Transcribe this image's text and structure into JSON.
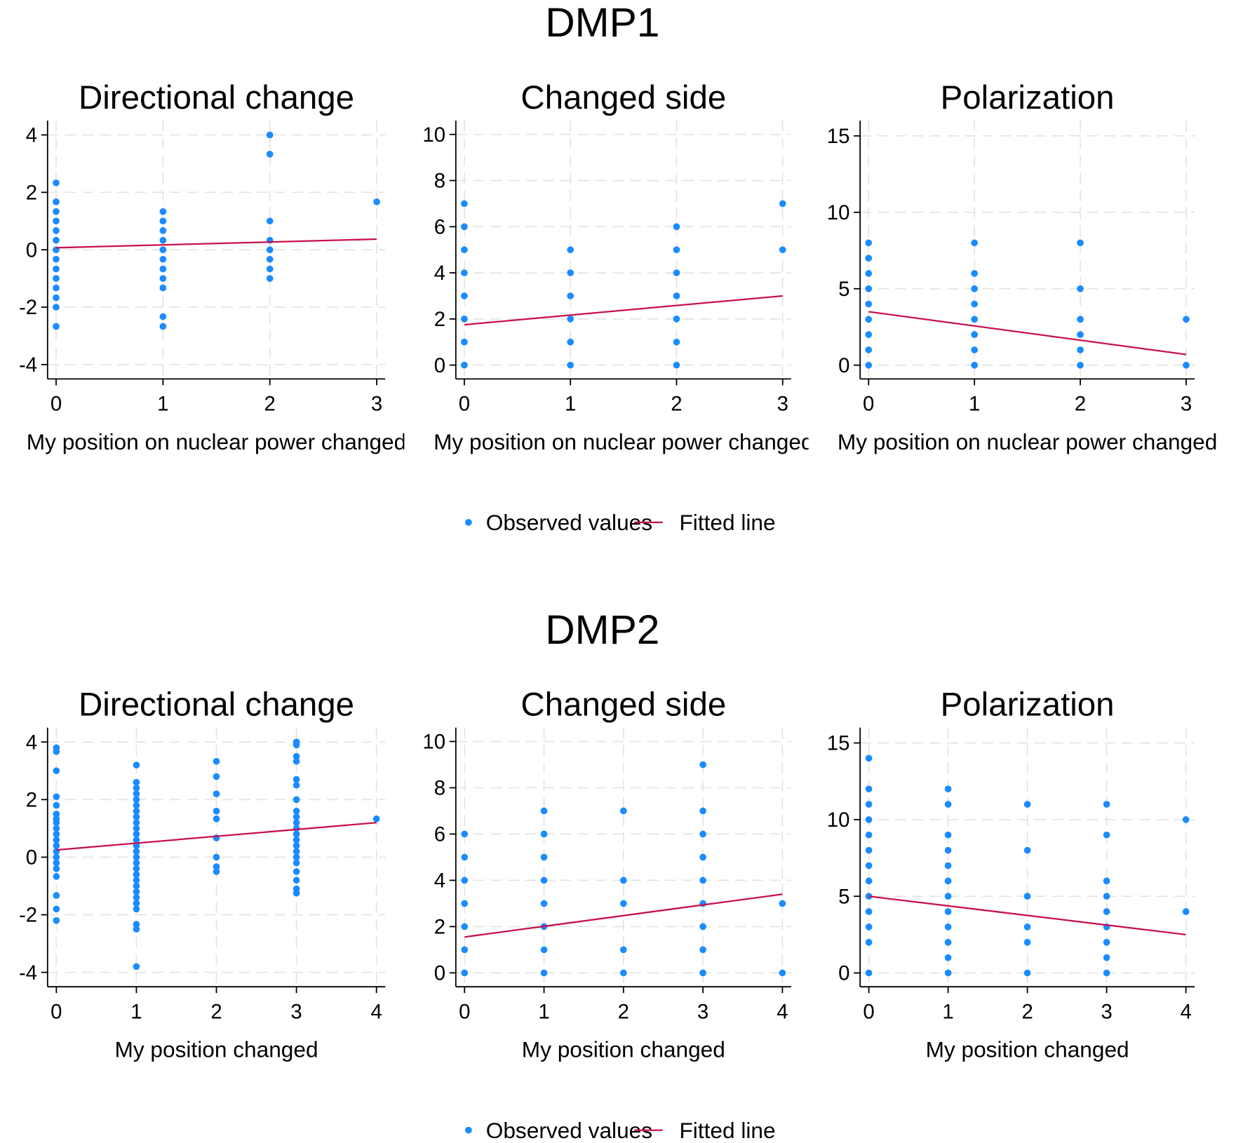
{
  "sections": [
    {
      "title": "DMP1"
    },
    {
      "title": "DMP2"
    }
  ],
  "chart_data": [
    {
      "type": "scatter",
      "title": "Directional change",
      "xlabel": "My position on nuclear power changed",
      "xlim": [
        -0.08,
        3.08
      ],
      "xticks": [
        0,
        1,
        2,
        3
      ],
      "ylim": [
        -4.5,
        4.5
      ],
      "yticks": [
        -4,
        -2,
        0,
        2,
        4
      ],
      "grid": true,
      "series": [
        {
          "name": "Observed values",
          "color": "#1a8cff",
          "type": "scatter",
          "x": [
            0,
            0,
            0,
            0,
            0,
            0,
            0,
            0,
            0,
            0,
            0,
            0,
            0,
            0,
            1,
            1,
            1,
            1,
            1,
            1,
            1,
            1,
            1,
            1,
            1,
            2,
            2,
            2,
            2,
            2,
            2,
            2,
            2,
            3
          ],
          "values": [
            2.33,
            1.67,
            1.33,
            1,
            0.67,
            0.33,
            0,
            -0.33,
            -0.67,
            -1,
            -1.33,
            -1.67,
            -2,
            -2.67,
            1.33,
            1,
            0.67,
            0.33,
            0,
            -0.33,
            -0.67,
            -1,
            -1.33,
            -2.33,
            -2.67,
            4,
            3.33,
            1,
            0.33,
            0,
            -0.33,
            -0.67,
            -1,
            1.67
          ]
        },
        {
          "name": "Fitted line",
          "color": "#c8104e",
          "type": "line",
          "x": [
            0,
            3
          ],
          "values": [
            0.07,
            0.37
          ]
        }
      ]
    },
    {
      "type": "scatter",
      "title": "Changed side",
      "xlabel": "My position on nuclear power changed",
      "xlim": [
        -0.08,
        3.08
      ],
      "xticks": [
        0,
        1,
        2,
        3
      ],
      "ylim": [
        -0.6,
        10.6
      ],
      "yticks": [
        0,
        2,
        4,
        6,
        8,
        10
      ],
      "grid": true,
      "series": [
        {
          "name": "Observed values",
          "color": "#1a8cff",
          "type": "scatter",
          "x": [
            0,
            0,
            0,
            0,
            0,
            0,
            0,
            0,
            1,
            1,
            1,
            1,
            1,
            1,
            2,
            2,
            2,
            2,
            2,
            2,
            2,
            3,
            3
          ],
          "values": [
            7,
            6,
            5,
            4,
            3,
            2,
            1,
            0,
            5,
            4,
            3,
            2,
            1,
            0,
            6,
            5,
            4,
            3,
            2,
            1,
            0,
            7,
            5
          ]
        },
        {
          "name": "Fitted line",
          "color": "#c8104e",
          "type": "line",
          "x": [
            0,
            3
          ],
          "values": [
            1.75,
            3
          ]
        }
      ]
    },
    {
      "type": "scatter",
      "title": "Polarization",
      "xlabel": "My position on nuclear power changed",
      "xlim": [
        -0.08,
        3.08
      ],
      "xticks": [
        0,
        1,
        2,
        3
      ],
      "ylim": [
        -0.9,
        16
      ],
      "yticks": [
        0,
        5,
        10,
        15
      ],
      "grid": true,
      "series": [
        {
          "name": "Observed values",
          "color": "#1a8cff",
          "type": "scatter",
          "x": [
            0,
            0,
            0,
            0,
            0,
            0,
            0,
            0,
            0,
            1,
            1,
            1,
            1,
            1,
            1,
            1,
            1,
            2,
            2,
            2,
            2,
            2,
            2,
            3,
            3
          ],
          "values": [
            8,
            7,
            6,
            5,
            4,
            3,
            2,
            1,
            0,
            8,
            6,
            5,
            4,
            3,
            2,
            1,
            0,
            8,
            5,
            3,
            2,
            1,
            0,
            3,
            0
          ]
        },
        {
          "name": "Fitted line",
          "color": "#c8104e",
          "type": "line",
          "x": [
            0,
            3
          ],
          "values": [
            3.5,
            0.7
          ]
        }
      ]
    },
    {
      "type": "scatter",
      "title": "Directional change",
      "xlabel": "My position changed",
      "xlim": [
        -0.11,
        4.11
      ],
      "xticks": [
        0,
        1,
        2,
        3,
        4
      ],
      "ylim": [
        -4.5,
        4.5
      ],
      "yticks": [
        -4,
        -2,
        0,
        2,
        4
      ],
      "grid": true,
      "series": [
        {
          "name": "Observed values",
          "color": "#1a8cff",
          "type": "scatter",
          "x": [
            0,
            0,
            0,
            0,
            0,
            0,
            0,
            0,
            0,
            0,
            0,
            0,
            0,
            0,
            0,
            0,
            0,
            0,
            0,
            0,
            1,
            1,
            1,
            1,
            1,
            1,
            1,
            1,
            1,
            1,
            1,
            1,
            1,
            1,
            1,
            1,
            1,
            1,
            1,
            1,
            1,
            1,
            1,
            1,
            1,
            1,
            1,
            2,
            2,
            2,
            2,
            2,
            2,
            2,
            2,
            2,
            3,
            3,
            3,
            3,
            3,
            3,
            3,
            3,
            3,
            3,
            3,
            3,
            3,
            3,
            3,
            3,
            3,
            3,
            3,
            3,
            3,
            4
          ],
          "values": [
            3.8,
            3.67,
            3,
            2.1,
            1.8,
            1.5,
            1.33,
            1.2,
            1,
            0.8,
            0.6,
            0.4,
            0.2,
            0,
            -0.2,
            -0.4,
            -0.67,
            -1.33,
            -1.8,
            -2.2,
            3.2,
            2.6,
            2.4,
            2.2,
            2,
            1.8,
            1.6,
            1.4,
            1.2,
            1,
            0.8,
            0.6,
            0.4,
            0.2,
            0,
            -0.2,
            -0.4,
            -0.6,
            -0.8,
            -1,
            -1.2,
            -1.4,
            -1.6,
            -1.8,
            -2.33,
            -2.5,
            -3.8,
            3.33,
            2.8,
            2.2,
            1.6,
            1.33,
            0.67,
            0,
            -0.33,
            -0.5,
            4,
            3.9,
            3.5,
            3.33,
            2.7,
            2.5,
            2,
            1.6,
            1.4,
            1.2,
            1,
            0.8,
            0.6,
            0.4,
            0.2,
            0,
            -0.2,
            -0.5,
            -0.8,
            -1.1,
            -1.25,
            1.33
          ]
        },
        {
          "name": "Fitted line",
          "color": "#c8104e",
          "type": "line",
          "x": [
            0,
            4
          ],
          "values": [
            0.25,
            1.2
          ]
        }
      ]
    },
    {
      "type": "scatter",
      "title": "Changed side",
      "xlabel": "My position changed",
      "xlim": [
        -0.11,
        4.11
      ],
      "xticks": [
        0,
        1,
        2,
        3,
        4
      ],
      "ylim": [
        -0.6,
        10.6
      ],
      "yticks": [
        0,
        2,
        4,
        6,
        8,
        10
      ],
      "grid": true,
      "series": [
        {
          "name": "Observed values",
          "color": "#1a8cff",
          "type": "scatter",
          "x": [
            0,
            0,
            0,
            0,
            0,
            0,
            0,
            1,
            1,
            1,
            1,
            1,
            1,
            1,
            1,
            2,
            2,
            2,
            2,
            2,
            3,
            3,
            3,
            3,
            3,
            3,
            3,
            3,
            3,
            4,
            4
          ],
          "values": [
            6,
            5,
            4,
            3,
            2,
            1,
            0,
            7,
            6,
            5,
            4,
            3,
            2,
            1,
            0,
            7,
            4,
            3,
            1,
            0,
            9,
            7,
            6,
            5,
            4,
            3,
            2,
            1,
            0,
            3,
            0
          ]
        },
        {
          "name": "Fitted line",
          "color": "#c8104e",
          "type": "line",
          "x": [
            0,
            4
          ],
          "values": [
            1.55,
            3.4
          ]
        }
      ]
    },
    {
      "type": "scatter",
      "title": "Polarization",
      "xlabel": "My position changed",
      "xlim": [
        -0.11,
        4.11
      ],
      "xticks": [
        0,
        1,
        2,
        3,
        4
      ],
      "ylim": [
        -0.9,
        16
      ],
      "yticks": [
        0,
        5,
        10,
        15
      ],
      "grid": true,
      "series": [
        {
          "name": "Observed values",
          "color": "#1a8cff",
          "type": "scatter",
          "x": [
            0,
            0,
            0,
            0,
            0,
            0,
            0,
            0,
            0,
            0,
            0,
            0,
            0,
            1,
            1,
            1,
            1,
            1,
            1,
            1,
            1,
            1,
            1,
            1,
            1,
            2,
            2,
            2,
            2,
            2,
            2,
            3,
            3,
            3,
            3,
            3,
            3,
            3,
            3,
            3,
            4,
            4
          ],
          "values": [
            14,
            12,
            11,
            10,
            9,
            8,
            7,
            6,
            5,
            4,
            3,
            2,
            0,
            12,
            11,
            9,
            8,
            7,
            6,
            5,
            4,
            3,
            2,
            1,
            0,
            11,
            8,
            5,
            3,
            2,
            0,
            11,
            9,
            6,
            5,
            4,
            3,
            2,
            1,
            0,
            10,
            4
          ]
        },
        {
          "name": "Fitted line",
          "color": "#c8104e",
          "type": "line",
          "x": [
            0,
            4
          ],
          "values": [
            5,
            2.5
          ]
        }
      ]
    }
  ]
}
